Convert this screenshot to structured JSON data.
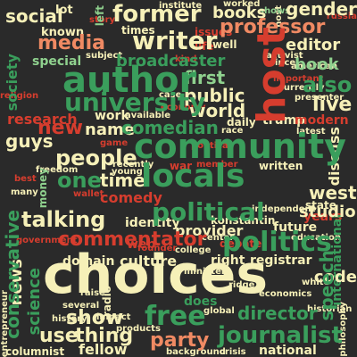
{
  "palette": {
    "background": "#2a2a2a",
    "green": "#3a9e5c",
    "dark_green": "#1f7a44",
    "light_green": "#8fd18e",
    "cream": "#f6f0b8",
    "pale_yellow": "#e3e89a",
    "salmon": "#f08a63",
    "red": "#d63d2e",
    "dim_red": "#8e2f26",
    "grey": "#9a9a9a"
  },
  "words": [
    {
      "text": "choices",
      "color": "#f6f0b8"
    },
    {
      "text": "community",
      "color": "#3a9e5c"
    },
    {
      "text": "locals",
      "color": "#3a9e5c"
    },
    {
      "text": "author",
      "color": "#3a9e5c"
    },
    {
      "text": "host",
      "color": "#d63d2e"
    },
    {
      "text": "university",
      "color": "#3a9e5c"
    },
    {
      "text": "former",
      "color": "#f6f0b8"
    },
    {
      "text": "political",
      "color": "#3a9e5c"
    },
    {
      "text": "politics",
      "color": "#3a9e5c"
    },
    {
      "text": "commentator",
      "color": "#d63d2e"
    },
    {
      "text": "journalist",
      "color": "#3a9e5c"
    },
    {
      "text": "writer",
      "color": "#f6f0b8"
    },
    {
      "text": "professor",
      "color": "#f08a63"
    },
    {
      "text": "media",
      "color": "#f08a63"
    },
    {
      "text": "social",
      "color": "#f6f0b8"
    },
    {
      "text": "books",
      "color": "#f6f0b8"
    },
    {
      "text": "gender",
      "color": "#f6f0b8"
    },
    {
      "text": "editor",
      "color": "#f6f0b8"
    },
    {
      "text": "book",
      "color": "#8fd18e"
    },
    {
      "text": "also",
      "color": "#3a9e5c"
    },
    {
      "text": "live",
      "color": "#f6f0b8"
    },
    {
      "text": "first",
      "color": "#8fd18e"
    },
    {
      "text": "public",
      "color": "#f6f0b8"
    },
    {
      "text": "world",
      "color": "#f6f0b8"
    },
    {
      "text": "new",
      "color": "#d63d2e"
    },
    {
      "text": "name",
      "color": "#f6f0b8"
    },
    {
      "text": "comedian",
      "color": "#3a9e5c"
    },
    {
      "text": "people",
      "color": "#f6f0b8"
    },
    {
      "text": "guys",
      "color": "#f6f0b8"
    },
    {
      "text": "one",
      "color": "#3a9e5c"
    },
    {
      "text": "time",
      "color": "#f6f0b8"
    },
    {
      "text": "comedy",
      "color": "#d63d2e"
    },
    {
      "text": "talking",
      "color": "#f6f0b8"
    },
    {
      "text": "conservative",
      "color": "#3a9e5c"
    },
    {
      "text": "science",
      "color": "#3a9e5c"
    },
    {
      "text": "news",
      "color": "#f6f0b8"
    },
    {
      "text": "culture",
      "color": "#f6f0b8"
    },
    {
      "text": "free",
      "color": "#3a9e5c"
    },
    {
      "text": "show",
      "color": "#f6f0b8"
    },
    {
      "text": "use",
      "color": "#f6f0b8"
    },
    {
      "text": "thing",
      "color": "#f6f0b8"
    },
    {
      "text": "party",
      "color": "#f08a63"
    },
    {
      "text": "director",
      "color": "#3a9e5c"
    },
    {
      "text": "speech",
      "color": "#3a9e5c"
    },
    {
      "text": "west",
      "color": "#f6f0b8"
    },
    {
      "text": "studio",
      "color": "#f6f0b8"
    },
    {
      "text": "discuss",
      "color": "#f6f0b8"
    },
    {
      "text": "society",
      "color": "#3a9e5c"
    },
    {
      "text": "research",
      "color": "#d63d2e"
    },
    {
      "text": "broadcaster",
      "color": "#3a9e5c"
    },
    {
      "text": "special",
      "color": "#8fd18e"
    },
    {
      "text": "known",
      "color": "#f6f0b8"
    },
    {
      "text": "lot",
      "color": "#f6f0b8"
    },
    {
      "text": "provider",
      "color": "#f6f0b8"
    },
    {
      "text": "future",
      "color": "#f6f0b8"
    },
    {
      "text": "identity",
      "color": "#f6f0b8"
    },
    {
      "text": "konstantin",
      "color": "#f6f0b8"
    },
    {
      "text": "domain",
      "color": "#f6f0b8"
    },
    {
      "text": "registrar",
      "color": "#f6f0b8"
    },
    {
      "text": "right",
      "color": "#f6f0b8"
    },
    {
      "text": "code",
      "color": "#f6f0b8"
    },
    {
      "text": "work",
      "color": "#f6f0b8"
    },
    {
      "text": "trump",
      "color": "#f6f0b8"
    },
    {
      "text": "modern",
      "color": "#d63d2e"
    },
    {
      "text": "daily",
      "color": "#f6f0b8"
    },
    {
      "text": "written",
      "color": "#f6f0b8"
    },
    {
      "text": "war",
      "color": "#d63d2e"
    },
    {
      "text": "web",
      "color": "#d63d2e"
    },
    {
      "text": "fellow",
      "color": "#f6f0b8"
    },
    {
      "text": "columnist",
      "color": "#f6f0b8"
    },
    {
      "text": "national",
      "color": "#f6f0b8"
    },
    {
      "text": "years",
      "color": "#d63d2e"
    },
    {
      "text": "state",
      "color": "#f6f0b8"
    },
    {
      "text": "international",
      "color": "#3a9e5c"
    },
    {
      "text": "debate",
      "color": "#d63d2e"
    },
    {
      "text": "money",
      "color": "#8fd18e"
    },
    {
      "text": "times",
      "color": "#f6f0b8"
    },
    {
      "text": "issues",
      "color": "#d63d2e"
    },
    {
      "text": "left",
      "color": "#8fd18e"
    },
    {
      "text": "life",
      "color": "#d63d2e"
    },
    {
      "text": "philosophy",
      "color": "#f6f0b8"
    },
    {
      "text": "entrepreneur",
      "color": "#f6f0b8"
    },
    {
      "text": "history",
      "color": "#f6f0b8"
    },
    {
      "text": "institute",
      "color": "#f6f0b8"
    },
    {
      "text": "worked",
      "color": "#f6f0b8"
    },
    {
      "text": "well",
      "color": "#f6f0b8"
    },
    {
      "text": "since",
      "color": "#f6f0b8"
    },
    {
      "text": "activist",
      "color": "#f6f0b8"
    },
    {
      "text": "important",
      "color": "#d63d2e"
    },
    {
      "text": "currently",
      "color": "#f6f0b8"
    },
    {
      "text": "presenter",
      "color": "#f6f0b8"
    },
    {
      "text": "religion",
      "color": "#d63d2e"
    },
    {
      "text": "subject",
      "color": "#f6f0b8"
    },
    {
      "text": "case",
      "color": "#f6f0b8"
    },
    {
      "text": "available",
      "color": "#f6f0b8"
    },
    {
      "text": "race",
      "color": "#f6f0b8"
    },
    {
      "text": "latest",
      "color": "#f6f0b8"
    },
    {
      "text": "recently",
      "color": "#f6f0b8"
    },
    {
      "text": "young",
      "color": "#f6f0b8"
    },
    {
      "text": "member",
      "color": "#d63d2e"
    },
    {
      "text": "founder",
      "color": "#d63d2e"
    },
    {
      "text": "college",
      "color": "#f6f0b8"
    },
    {
      "text": "minister",
      "color": "#f6f0b8"
    },
    {
      "text": "center",
      "color": "#f6f0b8"
    },
    {
      "text": "education",
      "color": "#f6f0b8"
    },
    {
      "text": "ridge",
      "color": "#f6f0b8"
    },
    {
      "text": "economics",
      "color": "#f6f0b8"
    },
    {
      "text": "white",
      "color": "#f6f0b8"
    },
    {
      "text": "radio",
      "color": "#f6f0b8"
    },
    {
      "text": "raise",
      "color": "#f6f0b8"
    },
    {
      "text": "impact",
      "color": "#f6f0b8"
    },
    {
      "text": "several",
      "color": "#f6f0b8"
    },
    {
      "text": "products",
      "color": "#f6f0b8"
    },
    {
      "text": "background",
      "color": "#f6f0b8"
    },
    {
      "text": "global",
      "color": "#f6f0b8"
    },
    {
      "text": "does",
      "color": "#3a9e5c"
    },
    {
      "text": "historian",
      "color": "#f6f0b8"
    },
    {
      "text": "crisis",
      "color": "#f6f0b8"
    },
    {
      "text": "freedom",
      "color": "#f6f0b8"
    },
    {
      "text": "government",
      "color": "#d63d2e"
    },
    {
      "text": "many",
      "color": "#f6f0b8"
    },
    {
      "text": "russia",
      "color": "#d63d2e"
    },
    {
      "text": "wallet",
      "color": "#d63d2e"
    },
    {
      "text": "best",
      "color": "#d63d2e"
    },
    {
      "text": "kind",
      "color": "#d63d2e"
    },
    {
      "text": "host",
      "color": "#f6f0b8"
    },
    {
      "text": "shows",
      "color": "#8fd18e"
    },
    {
      "text": "independent",
      "color": "#f6f0b8"
    },
    {
      "text": "american",
      "color": "#f6f0b8"
    },
    {
      "text": "game",
      "color": "#d63d2e"
    },
    {
      "text": "economy",
      "color": "#d63d2e"
    },
    {
      "text": "political",
      "color": "#d63d2e"
    },
    {
      "text": "story",
      "color": "#d63d2e"
    }
  ]
}
